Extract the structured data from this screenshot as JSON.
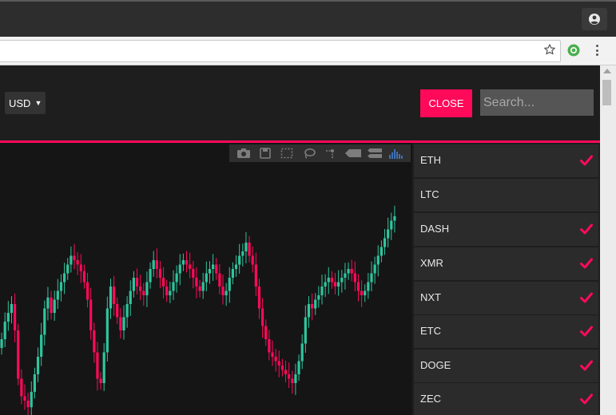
{
  "header": {
    "currency": "USD",
    "close_label": "CLOSE",
    "search_placeholder": "Search..."
  },
  "colors": {
    "accent": "#ff0a5a",
    "up": "#2fc59e",
    "down": "#ff0a5a"
  },
  "chart_toolbar": [
    "camera-icon",
    "save-icon",
    "select-box-icon",
    "lasso-icon",
    "spike-lines-icon",
    "hover-closest-icon",
    "hover-compare-icon",
    "plotly-logo-icon"
  ],
  "coins": [
    {
      "name": "ETH",
      "checked": true
    },
    {
      "name": "LTC",
      "checked": false
    },
    {
      "name": "DASH",
      "checked": true
    },
    {
      "name": "XMR",
      "checked": true
    },
    {
      "name": "NXT",
      "checked": true
    },
    {
      "name": "ETC",
      "checked": true
    },
    {
      "name": "DOGE",
      "checked": true
    },
    {
      "name": "ZEC",
      "checked": true
    }
  ],
  "chart_data": {
    "type": "candlestick",
    "closes": [
      0.36,
      0.44,
      0.48,
      0.52,
      0.4,
      0.18,
      0.1,
      0.08,
      0.05,
      0.12,
      0.2,
      0.28,
      0.38,
      0.5,
      0.55,
      0.48,
      0.54,
      0.58,
      0.62,
      0.66,
      0.7,
      0.74,
      0.72,
      0.7,
      0.67,
      0.62,
      0.54,
      0.4,
      0.3,
      0.18,
      0.16,
      0.3,
      0.5,
      0.6,
      0.52,
      0.46,
      0.4,
      0.46,
      0.52,
      0.58,
      0.64,
      0.6,
      0.58,
      0.56,
      0.62,
      0.68,
      0.72,
      0.68,
      0.64,
      0.6,
      0.56,
      0.58,
      0.62,
      0.66,
      0.7,
      0.72,
      0.7,
      0.68,
      0.64,
      0.6,
      0.58,
      0.62,
      0.66,
      0.68,
      0.7,
      0.66,
      0.6,
      0.56,
      0.58,
      0.64,
      0.68,
      0.7,
      0.74,
      0.76,
      0.8,
      0.74,
      0.7,
      0.6,
      0.5,
      0.42,
      0.36,
      0.3,
      0.28,
      0.26,
      0.24,
      0.22,
      0.2,
      0.18,
      0.16,
      0.2,
      0.26,
      0.34,
      0.46,
      0.52,
      0.5,
      0.54,
      0.56,
      0.6,
      0.62,
      0.64,
      0.62,
      0.6,
      0.62,
      0.64,
      0.66,
      0.68,
      0.66,
      0.62,
      0.58,
      0.56,
      0.58,
      0.62,
      0.66,
      0.7,
      0.74,
      0.78,
      0.82,
      0.86,
      0.9,
      0.92
    ],
    "y_range": [
      0,
      1
    ]
  }
}
